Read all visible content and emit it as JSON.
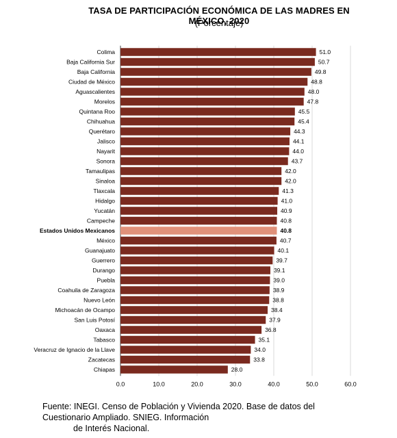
{
  "chart_data": {
    "type": "bar",
    "orientation": "horizontal",
    "title": "Tasa de Participación económica de las madres en México, 2020",
    "subtitle": "(Porcentaje)",
    "categories": [
      "Colima",
      "Baja California Sur",
      "Baja California",
      "Ciudad de México",
      "Aguascalientes",
      "Morelos",
      "Quintana Roo",
      "Chihuahua",
      "Querétaro",
      "Jalisco",
      "Nayarit",
      "Sonora",
      "Tamaulipas",
      "Sinaloa",
      "Tlaxcala",
      "Hidalgo",
      "Yucatán",
      "Campeche",
      "Estados Unidos Mexicanos",
      "México",
      "Guanajuato",
      "Guerrero",
      "Durango",
      "Puebla",
      "Coahuila de Zaragoza",
      "Nuevo León",
      "Michoacán de Ocampo",
      "San Luis Potosí",
      "Oaxaca",
      "Tabasco",
      "Veracruz de Ignacio de la Llave",
      "Zacatecas",
      "Chiapas"
    ],
    "values": [
      51.0,
      50.7,
      49.8,
      48.8,
      48.0,
      47.8,
      45.5,
      45.4,
      44.3,
      44.1,
      44.0,
      43.7,
      42.0,
      42.0,
      41.3,
      41.0,
      40.9,
      40.8,
      40.8,
      40.7,
      40.1,
      39.7,
      39.1,
      39.0,
      38.9,
      38.8,
      38.4,
      37.9,
      36.8,
      35.1,
      34.0,
      33.8,
      28.0
    ],
    "value_labels": [
      "51.0",
      "50.7",
      "49.8",
      "48.8",
      "48.0",
      "47.8",
      "45.5",
      "45.4",
      "44.3",
      "44.1",
      "44.0",
      "43.7",
      "42.0",
      "42.0",
      "41.3",
      "41.0",
      "40.9",
      "40.8",
      "40.8",
      "40.7",
      "40.1",
      "39.7",
      "39.1",
      "39.0",
      "38.9",
      "38.8",
      "38.4",
      "37.9",
      "36.8",
      "35.1",
      "34.0",
      "33.8",
      "28.0"
    ],
    "highlight_category": "Estados Unidos Mexicanos",
    "xlim": [
      0,
      60
    ],
    "xticks": [
      "0.0",
      "10.0",
      "20.0",
      "30.0",
      "40.0",
      "50.0",
      "60.0"
    ],
    "xlabel": "",
    "ylabel": "",
    "grid": "vertical",
    "legend": "none",
    "colors": {
      "bar": "#7a2a1f",
      "highlight": "#e0917a",
      "grid": "#d9d9d9",
      "axis": "#404040"
    }
  },
  "source": {
    "line1": "Fuente: INEGI. Censo de Población y Vivienda 2020. Base de datos del",
    "line2": "Cuestionario Ampliado. SNIEG. Información",
    "line3": "de Interés Nacional."
  }
}
